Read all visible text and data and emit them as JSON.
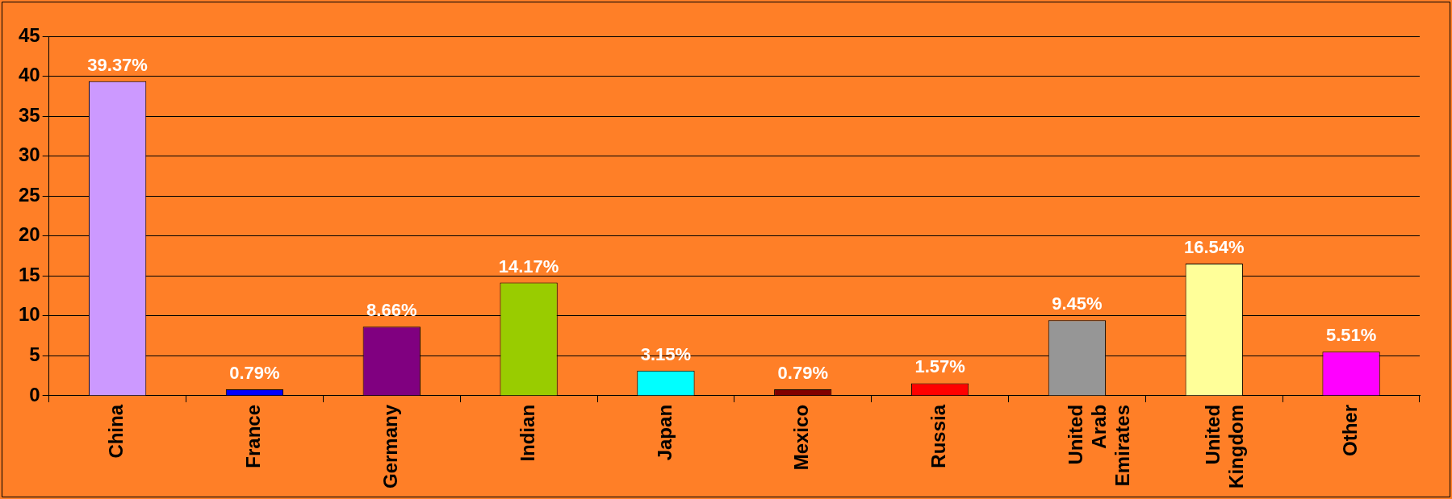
{
  "chart_data": {
    "type": "bar",
    "categories": [
      "China",
      "France",
      "Germany",
      "Indian",
      "Japan",
      "Mexico",
      "Russia",
      "United Arab Emirates",
      "United Kingdom",
      "Other"
    ],
    "values": [
      39.37,
      0.79,
      8.66,
      14.17,
      3.15,
      0.79,
      1.57,
      9.45,
      16.54,
      5.51
    ],
    "colors": [
      "#cc99ff",
      "#0000ff",
      "#800080",
      "#99cc00",
      "#00ffff",
      "#800000",
      "#ff0000",
      "#969696",
      "#ffff99",
      "#ff00ff"
    ],
    "value_labels": [
      "39.37%",
      "0.79%",
      "8.66%",
      "14.17%",
      "3.15%",
      "0.79%",
      "1.57%",
      "9.45%",
      "16.54%",
      "5.51%"
    ],
    "ylim": [
      0,
      45
    ],
    "yticks": [
      0,
      5,
      10,
      15,
      20,
      25,
      30,
      35,
      40,
      45
    ],
    "grid": "y",
    "legend": false
  }
}
